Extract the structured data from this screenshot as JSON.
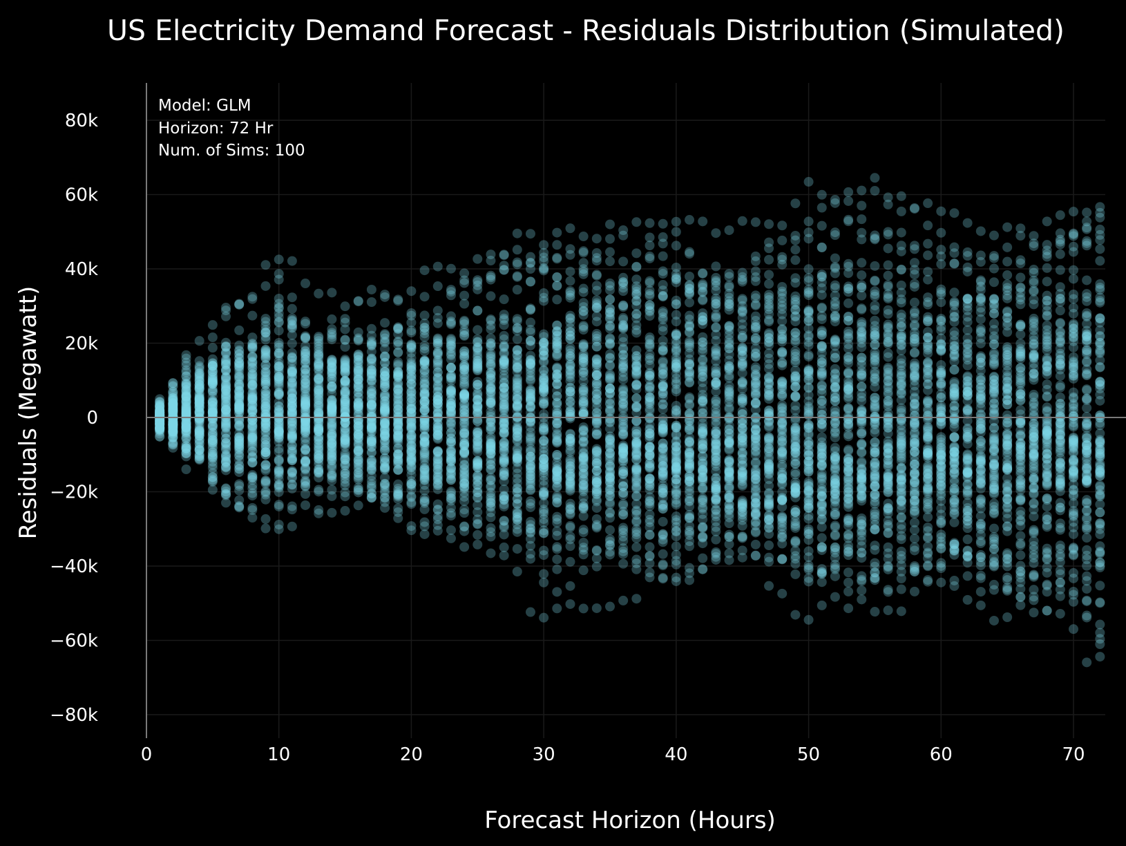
{
  "chart_data": {
    "type": "scatter",
    "title": "US Electricity Demand Forecast - Residuals Distribution (Simulated)",
    "xlabel": "Forecast Horizon (Hours)",
    "ylabel": "Residuals (Megawatt)",
    "xlim": [
      0,
      72
    ],
    "ylim": [
      -90000,
      90000
    ],
    "x_ticks": [
      0,
      10,
      20,
      30,
      40,
      50,
      60,
      70
    ],
    "x_tick_labels": [
      "0",
      "10",
      "20",
      "30",
      "40",
      "50",
      "60",
      "70"
    ],
    "y_ticks": [
      80000,
      60000,
      40000,
      20000,
      0,
      -20000,
      -40000,
      -60000,
      -80000
    ],
    "y_tick_labels": [
      "80k",
      "60k",
      "40k",
      "20k",
      "0",
      "−20k",
      "−40k",
      "−60k",
      "−80k"
    ],
    "grid": true,
    "marker_color": "#7fd8e8",
    "background_color": "#000000",
    "annotations": [
      "Model: GLM",
      "Horizon: 72 Hr",
      "Num. of Sims: 100"
    ],
    "num_sims": 100,
    "horizon_hours": 72,
    "residual_spread_by_hour": {
      "x": [
        1,
        2,
        3,
        4,
        5,
        6,
        8,
        10,
        12,
        15,
        18,
        20,
        25,
        30,
        35,
        40,
        45,
        50,
        55,
        60,
        65,
        70,
        72
      ],
      "min": [
        -7000,
        -10000,
        -15000,
        -18000,
        -25000,
        -28000,
        -33000,
        -33000,
        -30000,
        -33000,
        -38000,
        -40000,
        -45000,
        -62000,
        -55000,
        -58000,
        -50000,
        -70000,
        -65000,
        -55000,
        -68000,
        -58000,
        -75000
      ],
      "max": [
        5000,
        11000,
        18000,
        22000,
        26000,
        30000,
        33000,
        52000,
        38000,
        35000,
        36000,
        39000,
        45000,
        55000,
        60000,
        57000,
        58000,
        68000,
        78000,
        65000,
        62000,
        70000,
        76000
      ]
    }
  }
}
